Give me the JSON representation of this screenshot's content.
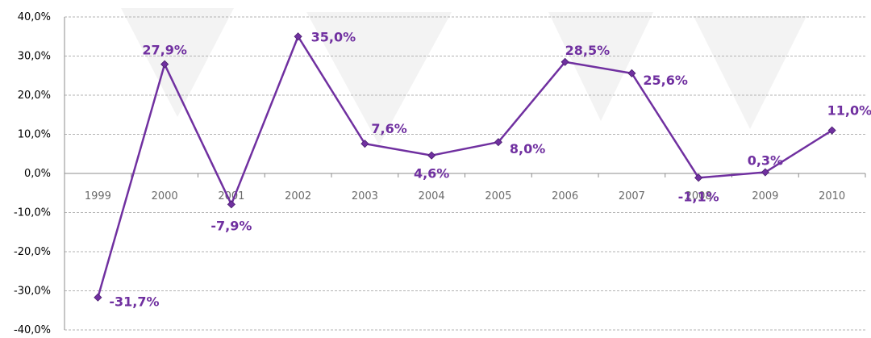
{
  "chart_data": {
    "type": "line",
    "title": "",
    "xlabel": "",
    "ylabel": "",
    "categories": [
      "1999",
      "2000",
      "2001",
      "2002",
      "2003",
      "2004",
      "2005",
      "2006",
      "2007",
      "2008",
      "2009",
      "2010"
    ],
    "series": [
      {
        "values": [
          -31.7,
          27.9,
          -7.9,
          35.0,
          7.6,
          4.6,
          8.0,
          28.5,
          25.6,
          -1.1,
          0.3,
          11.0
        ],
        "labels": [
          "-31,7%",
          "27,9%",
          "-7,9%",
          "35,0%",
          "7,6%",
          "4,6%",
          "8,0%",
          "28,5%",
          "25,6%",
          "-1,1%",
          "0,3%",
          "11,0%"
        ],
        "color": "#7030a0"
      }
    ],
    "ylim": [
      -40,
      40
    ],
    "yticks": [
      "-40,0%",
      "-30,0%",
      "-20,0%",
      "-10,0%",
      "0,0%",
      "10,0%",
      "20,0%",
      "30,0%",
      "40,0%"
    ],
    "grid": true,
    "legend": "none",
    "colors": {
      "line": "#7030a0",
      "marker": "#7030a0",
      "label": "#7030a0",
      "grid": "#b3b3b3",
      "watermark": "#f3f3f3"
    }
  }
}
